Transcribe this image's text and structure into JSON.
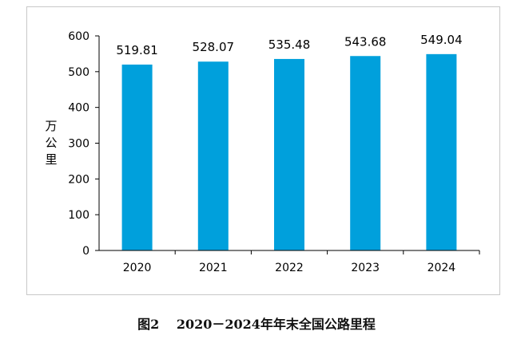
{
  "chart_data": {
    "type": "bar",
    "categories": [
      "2020",
      "2021",
      "2022",
      "2023",
      "2024"
    ],
    "values": [
      519.81,
      528.07,
      535.48,
      543.68,
      549.04
    ],
    "data_labels": [
      "519.81",
      "528.07",
      "535.48",
      "543.68",
      "549.04"
    ],
    "ylabel": "万公里",
    "xlabel": "",
    "ylim": [
      0,
      600
    ],
    "yticks": [
      0,
      100,
      200,
      300,
      400,
      500,
      600
    ],
    "grid": false,
    "bar_color": "#00a0dc"
  },
  "caption": "图2　 2020－2024年年末全国公路里程"
}
